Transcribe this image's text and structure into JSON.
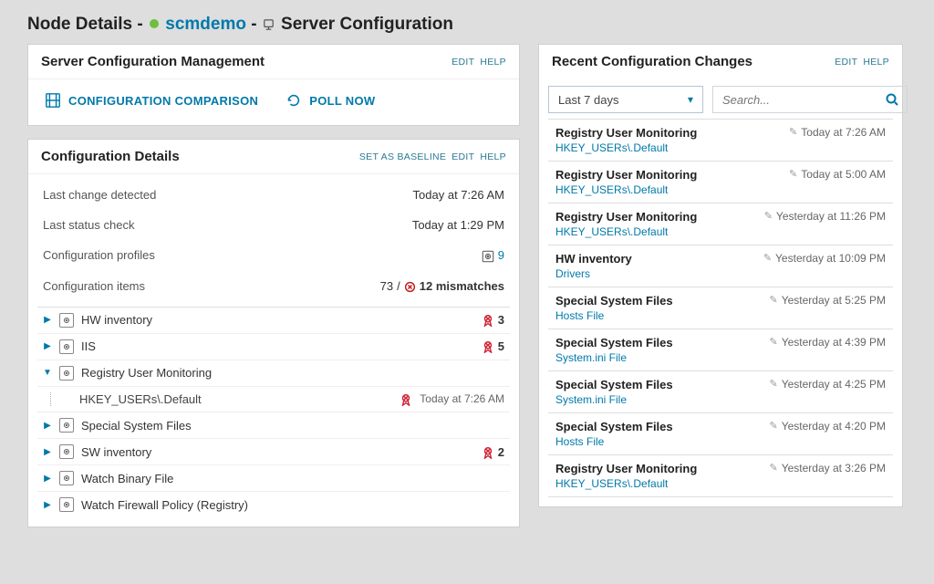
{
  "header": {
    "prefix": "Node Details - ",
    "node_name": "scmdemo",
    "suffix_label": "Server Configuration"
  },
  "scm_panel": {
    "title": "Server Configuration Management",
    "edit_label": "EDIT",
    "help_label": "HELP",
    "compare_label": "CONFIGURATION COMPARISON",
    "poll_label": "POLL NOW"
  },
  "details_panel": {
    "title": "Configuration Details",
    "baseline_label": "SET AS BASELINE",
    "edit_label": "EDIT",
    "help_label": "HELP",
    "rows": {
      "last_change_label": "Last change detected",
      "last_change_value": "Today at 7:26 AM",
      "last_check_label": "Last status check",
      "last_check_value": "Today at 1:29 PM",
      "profiles_label": "Configuration profiles",
      "profiles_count": "9",
      "items_label": "Configuration items",
      "items_total": "73",
      "items_separator": " / ",
      "items_mismatch_text": "12 mismatches"
    },
    "tree": [
      {
        "label": "HW inventory",
        "expanded": false,
        "mismatches": "3",
        "children": []
      },
      {
        "label": "IIS",
        "expanded": false,
        "mismatches": "5",
        "children": []
      },
      {
        "label": "Registry User Monitoring",
        "expanded": true,
        "mismatches": "",
        "children": [
          {
            "label": "HKEY_USERs\\.Default",
            "mismatch": true,
            "timestamp": "Today at 7:26 AM"
          }
        ]
      },
      {
        "label": "Special System Files",
        "expanded": false,
        "mismatches": "",
        "children": []
      },
      {
        "label": "SW inventory",
        "expanded": false,
        "mismatches": "2",
        "children": []
      },
      {
        "label": "Watch Binary File",
        "expanded": false,
        "mismatches": "",
        "children": []
      },
      {
        "label": "Watch Firewall Policy (Registry)",
        "expanded": false,
        "mismatches": "",
        "children": []
      }
    ]
  },
  "recent_panel": {
    "title": "Recent Configuration Changes",
    "edit_label": "EDIT",
    "help_label": "HELP",
    "range_selected": "Last 7 days",
    "search_placeholder": "Search...",
    "items": [
      {
        "title": "Registry User Monitoring",
        "sub": "HKEY_USERs\\.Default",
        "time": "Today at 7:26 AM"
      },
      {
        "title": "Registry User Monitoring",
        "sub": "HKEY_USERs\\.Default",
        "time": "Today at 5:00 AM"
      },
      {
        "title": "Registry User Monitoring",
        "sub": "HKEY_USERs\\.Default",
        "time": "Yesterday at 11:26 PM"
      },
      {
        "title": "HW inventory",
        "sub": "Drivers",
        "time": "Yesterday at 10:09 PM"
      },
      {
        "title": "Special System Files",
        "sub": "Hosts File",
        "time": "Yesterday at 5:25 PM"
      },
      {
        "title": "Special System Files",
        "sub": "System.ini File",
        "time": "Yesterday at 4:39 PM"
      },
      {
        "title": "Special System Files",
        "sub": "System.ini File",
        "time": "Yesterday at 4:25 PM"
      },
      {
        "title": "Special System Files",
        "sub": "Hosts File",
        "time": "Yesterday at 4:20 PM"
      },
      {
        "title": "Registry User Monitoring",
        "sub": "HKEY_USERs\\.Default",
        "time": "Yesterday at 3:26 PM"
      }
    ]
  },
  "colors": {
    "link": "#0079aa",
    "status_green": "#6fbf3e",
    "mismatch_red": "#d02030"
  }
}
